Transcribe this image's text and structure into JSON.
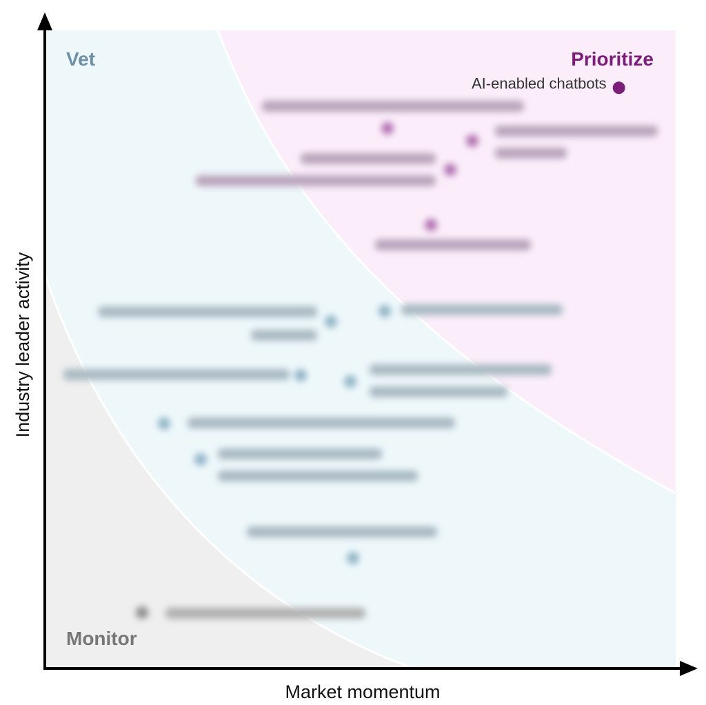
{
  "chart_data": {
    "type": "scatter",
    "xlabel": "Market momentum",
    "ylabel": "Industry leader activity",
    "xlim": [
      0,
      100
    ],
    "ylim": [
      0,
      100
    ],
    "grid": false,
    "zones": [
      {
        "name": "Prioritize",
        "color": "#7b1e7a",
        "fill": "#fbeefa"
      },
      {
        "name": "Vet",
        "color": "#6d8fa6",
        "fill": "#eef8fb"
      },
      {
        "name": "Monitor",
        "color": "#777777",
        "fill": "#efefef"
      }
    ],
    "points": [
      {
        "label": "AI-enabled chatbots",
        "x": 91,
        "y": 91,
        "zone": "Prioritize",
        "legible": true
      }
    ],
    "colors": {
      "prioritize_point": "#7b1e7a",
      "vet_point": "#8fb3c6",
      "monitor_point": "#8a8a8a",
      "axis": "#000000"
    }
  }
}
